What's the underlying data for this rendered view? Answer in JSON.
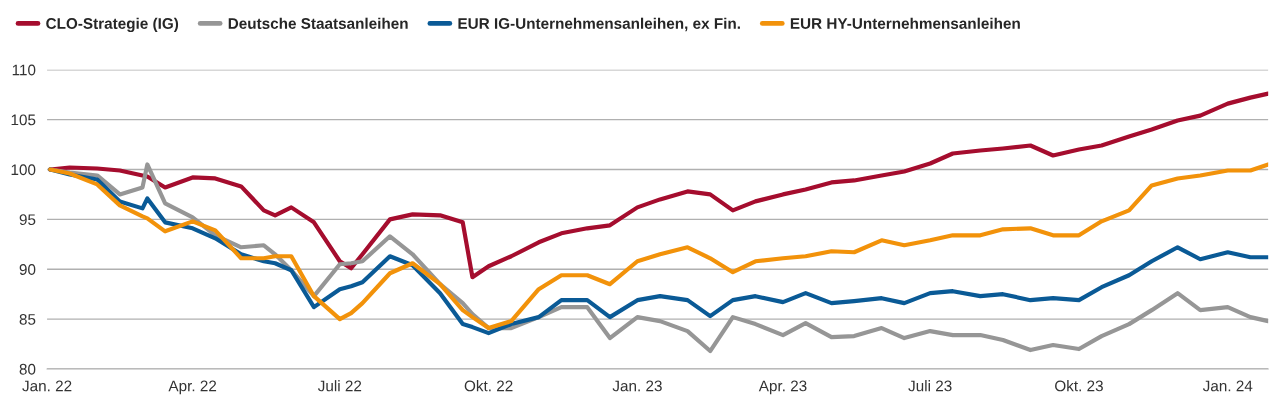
{
  "chart_data": {
    "type": "line",
    "x": [
      "2022-01-03",
      "2022-01-15",
      "2022-02-01",
      "2022-02-15",
      "2022-03-01",
      "2022-03-04",
      "2022-03-15",
      "2022-04-01",
      "2022-04-15",
      "2022-05-01",
      "2022-05-15",
      "2022-05-22",
      "2022-06-01",
      "2022-06-15",
      "2022-07-01",
      "2022-07-08",
      "2022-07-15",
      "2022-08-01",
      "2022-08-15",
      "2022-09-01",
      "2022-09-15",
      "2022-09-21",
      "2022-10-01",
      "2022-10-15",
      "2022-11-01",
      "2022-11-15",
      "2022-12-01",
      "2022-12-15",
      "2023-01-01",
      "2023-01-15",
      "2023-02-01",
      "2023-02-15",
      "2023-03-01",
      "2023-03-15",
      "2023-04-01",
      "2023-04-15",
      "2023-05-01",
      "2023-05-15",
      "2023-06-01",
      "2023-06-15",
      "2023-07-01",
      "2023-07-15",
      "2023-08-01",
      "2023-08-15",
      "2023-09-01",
      "2023-09-15",
      "2023-10-01",
      "2023-10-15",
      "2023-11-01",
      "2023-11-15",
      "2023-12-01",
      "2023-12-15",
      "2024-01-01",
      "2024-01-15",
      "2024-01-26"
    ],
    "series": [
      {
        "name": "CLO-Strategie (IG)",
        "color": "#a50d2e",
        "values": [
          100,
          100.2,
          100.1,
          99.9,
          99.4,
          99.3,
          98.2,
          99.2,
          99.1,
          98.3,
          95.9,
          95.4,
          96.2,
          94.7,
          90.8,
          90.1,
          91.5,
          95,
          95.5,
          95.4,
          94.7,
          89.2,
          90.3,
          91.3,
          92.7,
          93.6,
          94.1,
          94.4,
          96.2,
          97,
          97.8,
          97.5,
          95.9,
          96.8,
          97.5,
          98,
          98.7,
          98.9,
          99.4,
          99.8,
          100.6,
          101.6,
          101.9,
          102.1,
          102.4,
          101.4,
          102,
          102.4,
          103.3,
          104,
          104.9,
          105.4,
          106.6,
          107.2,
          107.6
        ]
      },
      {
        "name": "Deutsche Staatsanleihen",
        "color": "#969696",
        "values": [
          100,
          99.7,
          99.4,
          97.5,
          98.2,
          100.5,
          96.6,
          95.2,
          93.4,
          92.2,
          92.4,
          91.5,
          89.9,
          87.3,
          90.5,
          90.6,
          90.8,
          93.3,
          91.5,
          88.5,
          86.6,
          85.5,
          84.1,
          84.1,
          85.2,
          86.2,
          86.2,
          83.1,
          85.2,
          84.8,
          83.8,
          81.8,
          85.2,
          84.5,
          83.4,
          84.6,
          83.2,
          83.3,
          84.1,
          83.1,
          83.8,
          83.4,
          83.4,
          82.9,
          81.9,
          82.4,
          82,
          83.3,
          84.5,
          85.9,
          87.6,
          85.9,
          86.2,
          85.2,
          84.8
        ]
      },
      {
        "name": "EUR IG-Unternehmensanleihen, ex Fin.",
        "color": "#0a5a96",
        "values": [
          100,
          99.5,
          99,
          96.8,
          96.1,
          97.1,
          94.7,
          94.1,
          93.1,
          91.5,
          90.8,
          90.6,
          89.9,
          86.2,
          88,
          88.3,
          88.7,
          91.3,
          90.4,
          87.6,
          84.5,
          84.2,
          83.6,
          84.5,
          85.2,
          86.9,
          86.9,
          85.2,
          86.9,
          87.3,
          86.9,
          85.3,
          86.9,
          87.3,
          86.7,
          87.6,
          86.6,
          86.8,
          87.1,
          86.6,
          87.6,
          87.8,
          87.3,
          87.5,
          86.9,
          87.1,
          86.9,
          88.2,
          89.4,
          90.8,
          92.2,
          91,
          91.7,
          91.2,
          91.2
        ]
      },
      {
        "name": "EUR HY-Unternehmensanleihen",
        "color": "#f2920a",
        "values": [
          100,
          99.6,
          98.5,
          96.4,
          95.3,
          95.1,
          93.8,
          94.8,
          93.9,
          91.1,
          91.1,
          91.3,
          91.3,
          87.3,
          85,
          85.6,
          86.6,
          89.6,
          90.6,
          88.5,
          85.9,
          85.2,
          84.1,
          84.8,
          88,
          89.4,
          89.4,
          88.5,
          90.8,
          91.5,
          92.2,
          91.1,
          89.7,
          90.8,
          91.1,
          91.3,
          91.8,
          91.7,
          92.9,
          92.4,
          92.9,
          93.4,
          93.4,
          94,
          94.1,
          93.4,
          93.4,
          94.8,
          95.9,
          98.4,
          99.1,
          99.4,
          99.9,
          99.9,
          100.5
        ]
      }
    ],
    "xlim": [
      "2022-01-01",
      "2024-01-26"
    ],
    "xticks": [
      {
        "value": "2022-01-01",
        "label": "Jan. 22"
      },
      {
        "value": "2022-04-01",
        "label": "Apr. 22"
      },
      {
        "value": "2022-07-01",
        "label": "Juli 22"
      },
      {
        "value": "2022-10-01",
        "label": "Okt. 22"
      },
      {
        "value": "2023-01-01",
        "label": "Jan. 23"
      },
      {
        "value": "2023-04-01",
        "label": "Apr. 23"
      },
      {
        "value": "2023-07-01",
        "label": "Juli 23"
      },
      {
        "value": "2023-10-01",
        "label": "Okt. 23"
      },
      {
        "value": "2024-01-01",
        "label": "Jan. 24"
      }
    ],
    "ylim": [
      80,
      110
    ],
    "yticks": [
      80,
      85,
      90,
      95,
      100,
      105,
      110
    ],
    "grid": "y",
    "legend": "top left",
    "marker": "none",
    "line_style": "solid"
  }
}
